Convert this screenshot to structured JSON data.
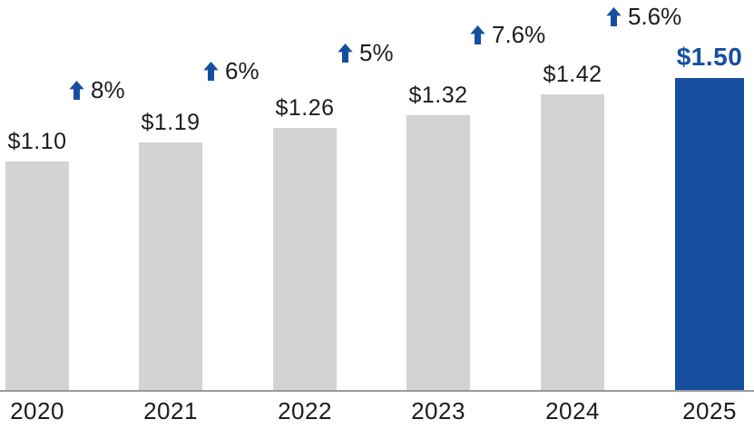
{
  "chart_data": {
    "type": "bar",
    "title": "",
    "xlabel": "",
    "ylabel": "",
    "categories": [
      "2020",
      "2021",
      "2022",
      "2023",
      "2024",
      "2025"
    ],
    "values": [
      1.1,
      1.19,
      1.26,
      1.32,
      1.42,
      1.5
    ],
    "value_labels": [
      "$1.10",
      "$1.19",
      "$1.26",
      "$1.32",
      "$1.42",
      "$1.50"
    ],
    "growth_annotations": [
      "8%",
      "6%",
      "5%",
      "7.6%",
      "5.6%"
    ],
    "ylim": [
      0,
      1.5
    ],
    "grid": false,
    "legend": false,
    "highlight_index": 5,
    "colors": {
      "bar_default": "#d3d3d3",
      "bar_highlight": "#164f9e",
      "annotation_arrow": "#164f9e",
      "text": "#1d1d1d"
    }
  }
}
